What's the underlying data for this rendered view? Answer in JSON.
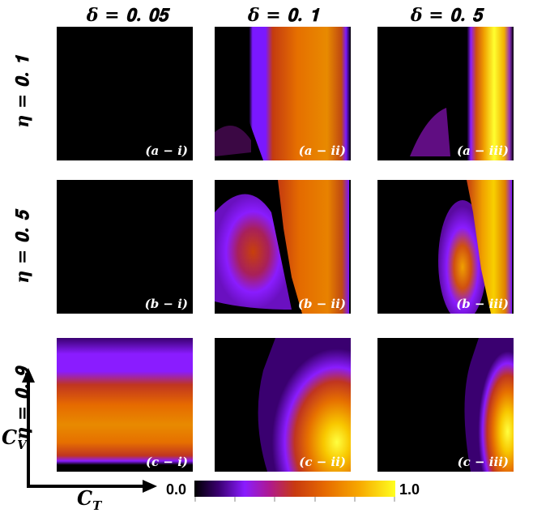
{
  "chart_data": {
    "type": "heatmap",
    "columns": [
      "δ = 0.05",
      "δ = 0.1",
      "δ = 0.5"
    ],
    "rows": [
      "η = 0.1",
      "η = 0.5",
      "η = 0.9"
    ],
    "panels": [
      {
        "label": "(a − i)",
        "fill": "zero"
      },
      {
        "label": "(a − ii)",
        "fill": "a2"
      },
      {
        "label": "(a − iii)",
        "fill": "a3"
      },
      {
        "label": "(b − i)",
        "fill": "zero"
      },
      {
        "label": "(b − ii)",
        "fill": "b2"
      },
      {
        "label": "(b − iii)",
        "fill": "b3"
      },
      {
        "label": "(c − i)",
        "fill": "c1"
      },
      {
        "label": "(c − ii)",
        "fill": "c2"
      },
      {
        "label": "(c − iii)",
        "fill": "c3"
      }
    ],
    "xlabel": "C_T",
    "ylabel": "C_V",
    "colorbar": {
      "min_label": "0.0",
      "max_label": "1.0",
      "range": [
        0,
        1
      ],
      "colormap": "gnuplot-like (black → purple → orange → yellow)"
    }
  },
  "texts": {
    "col1": "𝜹 = 𝟎. 𝟎𝟓",
    "col2": "𝜹 = 𝟎. 𝟏",
    "col3": "𝜹 = 𝟎. 𝟓",
    "row1": "𝜼 = 𝟎. 𝟏",
    "row2": "𝜼 = 𝟎. 𝟓",
    "row3": "𝜼 = 𝟎. 𝟗",
    "xaxis": "C",
    "xaxis_sub": "T",
    "yaxis": "C",
    "yaxis_sub": "V"
  }
}
